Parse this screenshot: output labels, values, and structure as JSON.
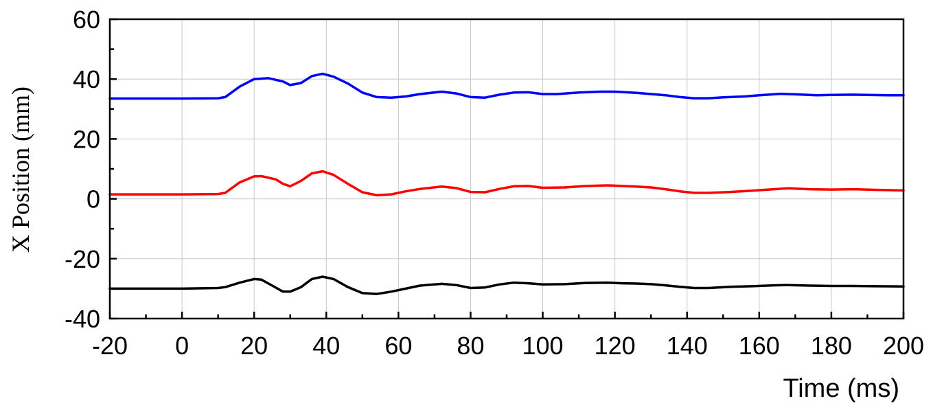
{
  "chart_data": {
    "type": "line",
    "title": "",
    "xlabel": "Time (ms)",
    "ylabel": "X Position (mm)",
    "xlim": [
      -20,
      200
    ],
    "ylim": [
      -40,
      60
    ],
    "xticks": [
      -20,
      0,
      20,
      40,
      60,
      80,
      100,
      120,
      140,
      160,
      180,
      200
    ],
    "yticks": [
      -40,
      -20,
      0,
      20,
      40,
      60
    ],
    "grid": true,
    "legend": "none",
    "series": [
      {
        "color": "#0000ff",
        "x": [
          -20,
          0,
          10,
          12,
          16,
          20,
          24,
          28,
          30,
          33,
          36,
          39,
          42,
          46,
          50,
          54,
          58,
          62,
          66,
          72,
          76,
          80,
          84,
          88,
          92,
          96,
          100,
          104,
          110,
          116,
          120,
          126,
          130,
          134,
          138,
          142,
          146,
          150,
          156,
          160,
          166,
          170,
          176,
          180,
          186,
          190,
          196,
          200
        ],
        "y": [
          33.5,
          33.5,
          33.6,
          34,
          37.5,
          40,
          40.3,
          39.2,
          38,
          38.7,
          41,
          41.8,
          40.8,
          38.5,
          35.5,
          34,
          33.8,
          34.2,
          35,
          35.8,
          35.2,
          34,
          33.8,
          34.8,
          35.5,
          35.6,
          35,
          35,
          35.5,
          35.8,
          35.8,
          35.4,
          35,
          34.6,
          34,
          33.6,
          33.6,
          33.9,
          34.2,
          34.6,
          35.1,
          34.9,
          34.6,
          34.7,
          34.8,
          34.7,
          34.6,
          34.6
        ]
      },
      {
        "color": "#ff0000",
        "x": [
          -20,
          0,
          10,
          12,
          16,
          20,
          22,
          26,
          28,
          30,
          33,
          36,
          39,
          42,
          46,
          50,
          54,
          58,
          62,
          66,
          72,
          76,
          80,
          84,
          88,
          92,
          96,
          100,
          106,
          112,
          118,
          122,
          126,
          130,
          134,
          138,
          142,
          146,
          152,
          158,
          164,
          168,
          174,
          180,
          186,
          192,
          200
        ],
        "y": [
          1.5,
          1.5,
          1.6,
          2,
          5.5,
          7.5,
          7.6,
          6.5,
          5,
          4.2,
          6,
          8.5,
          9.2,
          8,
          5,
          2.2,
          1.2,
          1.5,
          2.5,
          3.3,
          4.1,
          3.6,
          2.3,
          2.2,
          3.3,
          4.2,
          4.3,
          3.7,
          3.8,
          4.3,
          4.5,
          4.3,
          4.1,
          3.8,
          3.2,
          2.5,
          2,
          2,
          2.3,
          2.7,
          3.2,
          3.5,
          3.2,
          3.1,
          3.2,
          3,
          2.8
        ]
      },
      {
        "color": "#000000",
        "x": [
          -20,
          0,
          10,
          12,
          16,
          20,
          22,
          25,
          28,
          30,
          33,
          36,
          39,
          42,
          46,
          50,
          54,
          58,
          62,
          66,
          72,
          76,
          80,
          84,
          88,
          92,
          96,
          100,
          106,
          112,
          118,
          122,
          126,
          130,
          134,
          138,
          142,
          146,
          152,
          158,
          164,
          168,
          174,
          180,
          186,
          192,
          200
        ],
        "y": [
          -30,
          -30,
          -29.8,
          -29.5,
          -28,
          -26.8,
          -27,
          -29,
          -31,
          -31,
          -29.5,
          -26.8,
          -26,
          -26.8,
          -29.5,
          -31.5,
          -31.8,
          -31,
          -30,
          -29,
          -28.4,
          -28.8,
          -29.8,
          -29.6,
          -28.6,
          -28,
          -28.2,
          -28.6,
          -28.5,
          -28.1,
          -28,
          -28.2,
          -28.3,
          -28.5,
          -28.9,
          -29.4,
          -29.8,
          -29.8,
          -29.4,
          -29.2,
          -28.9,
          -28.8,
          -29,
          -29.1,
          -29.1,
          -29.2,
          -29.3
        ]
      }
    ]
  }
}
